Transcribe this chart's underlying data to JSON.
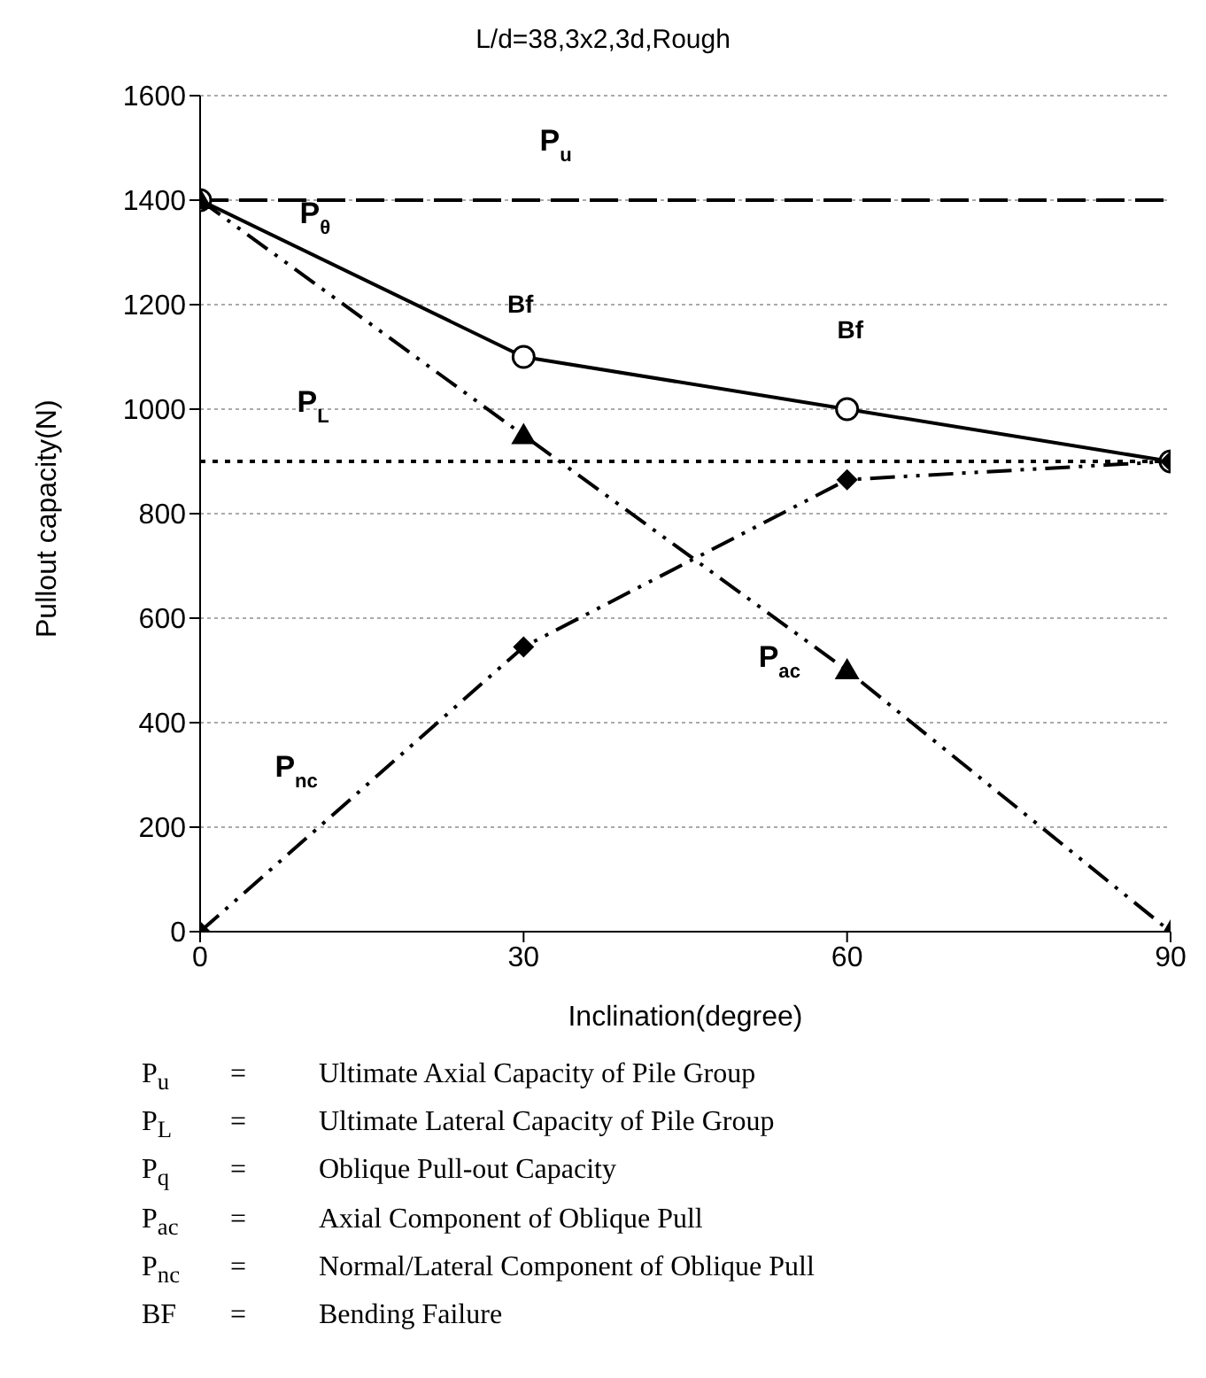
{
  "chart_data": {
    "type": "line",
    "title": "L/d=38,3x2,3d,Rough",
    "xlabel": "Inclination(degree)",
    "ylabel": "Pullout capacity(N)",
    "x": [
      0,
      30,
      60,
      90
    ],
    "series": [
      {
        "name": "P$_{θ}$",
        "color": "#000000",
        "values": [
          1400,
          1100,
          1000,
          900
        ],
        "marker": "circle",
        "line_style": "solid"
      },
      {
        "name": "P$_{ac}$",
        "color": "#000000",
        "values": [
          1400,
          950,
          500,
          0
        ],
        "marker": "triangle",
        "line_style": "dashed"
      },
      {
        "name": "P$_{nc}$",
        "color": "#000000",
        "values": [
          0,
          545,
          865,
          900
        ],
        "marker": "diamond",
        "line_style": "dashed"
      }
    ],
    "xlim": [
      0,
      90
    ],
    "xticks": [
      0,
      30,
      60,
      90
    ],
    "ylim": [
      0,
      1600
    ],
    "yticks": [
      0,
      200,
      400,
      600,
      800,
      1000,
      1200,
      1400,
      1600
    ],
    "grid": "y",
    "ref_lines": [
      {
        "axis": "y",
        "value": 1400,
        "label": "P$_{u}$",
        "color": "#000000",
        "line_style": "dashed"
      },
      {
        "axis": "y",
        "value": 900,
        "label": "P$_{L}$",
        "color": "#000000",
        "line_style": "dotted"
      }
    ],
    "annotations": [
      "Bf",
      "Bf",
      "P$_{u}$ = Ultimate Axial Capacity of Pile Group",
      "P$_{L}$ = Ultimate Lateral Capacity of Pile Group",
      "P$_{q}$ = Oblique Pull-out Capacity",
      "P$_{ac}$ = Axial Component of Oblique Pull",
      "P$_{nc}$ = Normal/Lateral Component of Oblique Pull",
      "BF = Bending Failure"
    ]
  }
}
